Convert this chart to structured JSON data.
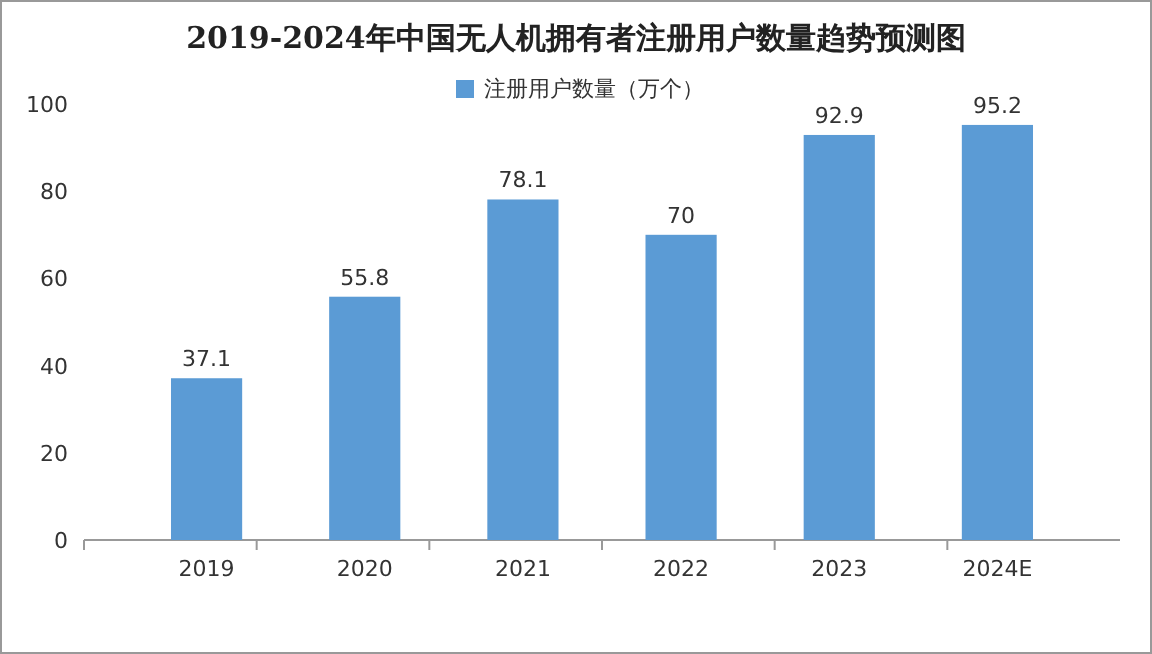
{
  "chart_data": {
    "type": "bar",
    "title": "2019-2024年中国无人机拥有者注册用户数量趋势预测图",
    "categories": [
      "2019",
      "2020",
      "2021",
      "2022",
      "2023",
      "2024E"
    ],
    "series": [
      {
        "name": "注册用户数量（万个）",
        "color": "#5b9bd5",
        "values": [
          37.1,
          55.8,
          78.1,
          70,
          92.9,
          95.2
        ]
      }
    ],
    "ylim": [
      0,
      100
    ],
    "yticks": [
      0,
      20,
      40,
      60,
      80,
      100
    ],
    "data_labels": true,
    "legend": "top",
    "grid": false
  }
}
